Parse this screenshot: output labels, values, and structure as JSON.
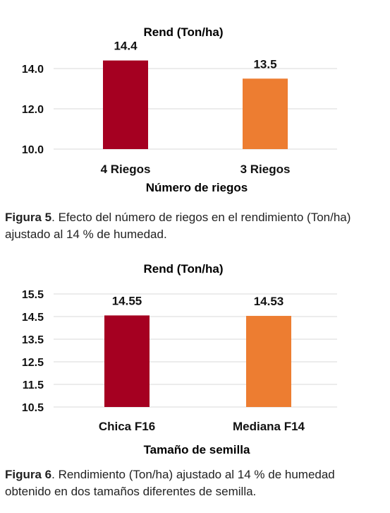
{
  "figures": [
    {
      "caption_label": "Figura 5",
      "caption_text": ". Efecto del número de riegos en el rendimiento (Ton/ha) ajustado al 14 % de humedad."
    },
    {
      "caption_label": "Figura 6",
      "caption_text": ". Rendimiento (Ton/ha) ajustado al 14 % de humedad obtenido en dos tamaños diferentes de semilla."
    }
  ],
  "chart_data": [
    {
      "type": "bar",
      "title": "Rend (Ton/ha)",
      "xlabel": "Número de riegos",
      "ylabel": "",
      "categories": [
        "4 Riegos",
        "3 Riegos"
      ],
      "values": [
        14.4,
        13.5
      ],
      "value_labels": [
        "14.4",
        "13.5"
      ],
      "colors": [
        "#a50021",
        "#ed7d31"
      ],
      "ylim": [
        10.0,
        14.0
      ],
      "yticks": [
        "10.0",
        "12.0",
        "14.0"
      ],
      "ytick_values": [
        10.0,
        12.0,
        14.0
      ],
      "grid": true,
      "legend": "none"
    },
    {
      "type": "bar",
      "title": "Rend (Ton/ha)",
      "xlabel": "Tamaño de semilla",
      "ylabel": "",
      "categories": [
        "Chica F16",
        "Mediana F14"
      ],
      "values": [
        14.55,
        14.53
      ],
      "value_labels": [
        "14.55",
        "14.53"
      ],
      "colors": [
        "#a50021",
        "#ed7d31"
      ],
      "ylim": [
        10.5,
        15.5
      ],
      "yticks": [
        "10.5",
        "11.5",
        "12.5",
        "13.5",
        "14.5",
        "15.5"
      ],
      "ytick_values": [
        10.5,
        11.5,
        12.5,
        13.5,
        14.5,
        15.5
      ],
      "grid": true,
      "legend": "none"
    }
  ]
}
